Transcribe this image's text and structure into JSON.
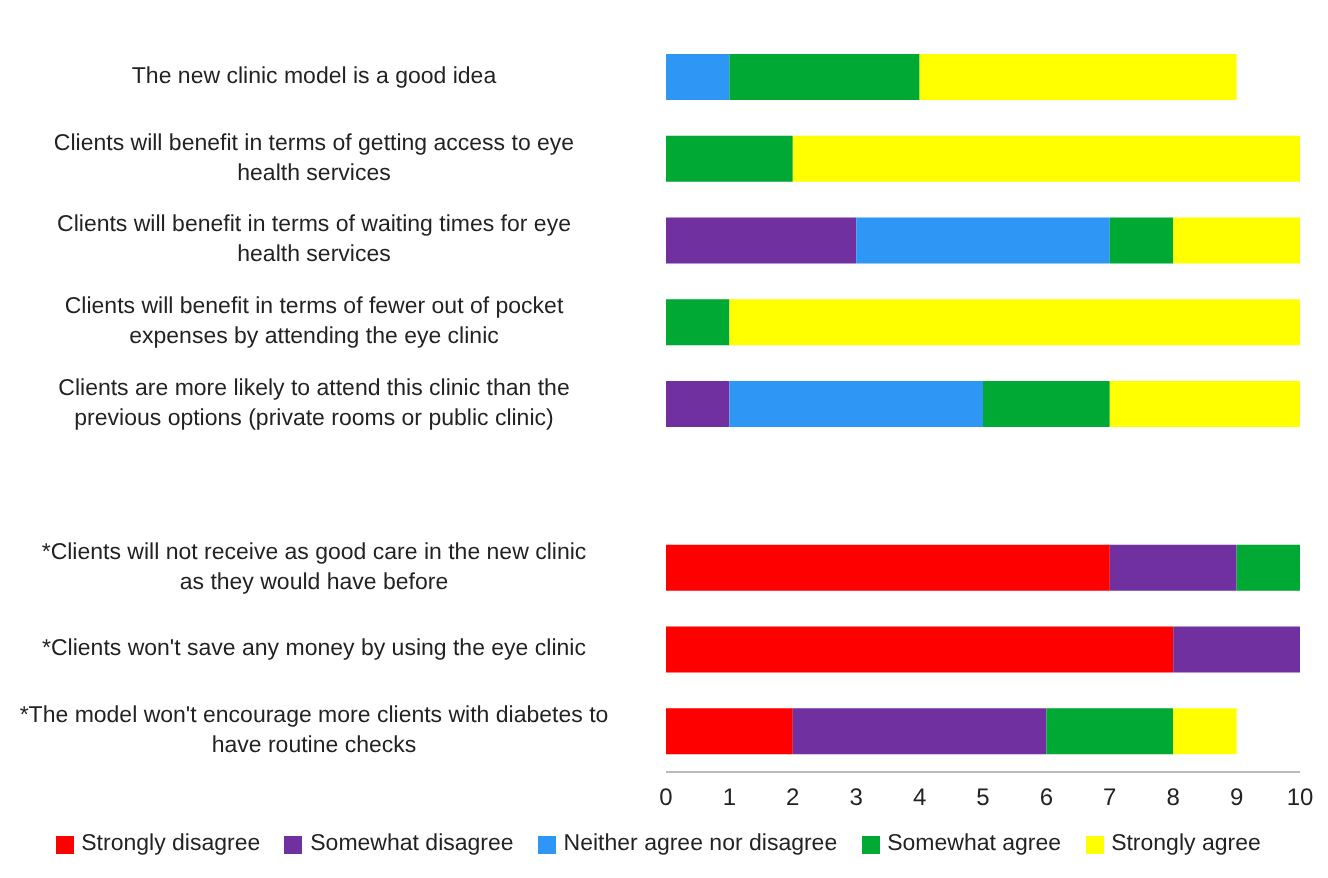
{
  "chart_data": {
    "type": "bar",
    "orientation": "horizontal",
    "stacked": true,
    "categories": [
      "The new clinic model is a good idea",
      "Clients will benefit in terms of getting access to eye health services",
      "Clients will benefit in terms of waiting times for eye health services",
      "Clients will benefit in terms of fewer out of pocket expenses by attending the eye clinic",
      "Clients are more likely to attend this clinic than the previous options (private rooms or public clinic)",
      null,
      "*Clients will not receive as good care in the new clinic as they would have before",
      "*Clients won't save any money by using the eye clinic",
      "*The model won't encourage more clients with diabetes to have routine checks"
    ],
    "series": [
      {
        "name": "Strongly disagree",
        "color": "#ff0000",
        "values": [
          null,
          null,
          null,
          null,
          null,
          null,
          7,
          8,
          2
        ]
      },
      {
        "name": "Somewhat disagree",
        "color": "#7030a0",
        "values": [
          null,
          null,
          3,
          null,
          1,
          null,
          2,
          2,
          4
        ]
      },
      {
        "name": "Neither agree nor disagree",
        "color": "#2e96f5",
        "values": [
          1,
          null,
          4,
          null,
          4,
          null,
          null,
          null,
          null
        ]
      },
      {
        "name": "Somewhat agree",
        "color": "#00a933",
        "values": [
          3,
          2,
          1,
          1,
          2,
          null,
          1,
          null,
          2
        ]
      },
      {
        "name": "Strongly agree",
        "color": "#ffff00",
        "values": [
          5,
          8,
          2,
          9,
          3,
          null,
          null,
          null,
          1
        ]
      }
    ],
    "xlim": [
      0,
      10
    ],
    "xticks": [
      0,
      1,
      2,
      3,
      4,
      5,
      6,
      7,
      8,
      9,
      10
    ],
    "grid": false,
    "legend": "bottom"
  }
}
